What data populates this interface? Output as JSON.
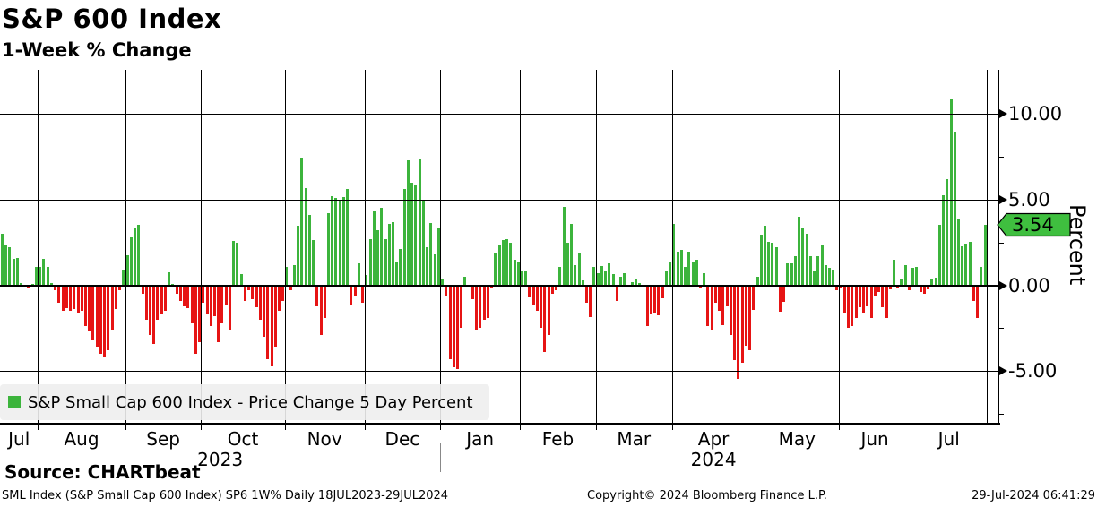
{
  "header": {
    "title": "S&P 600 Index",
    "subtitle": "1-Week % Change"
  },
  "legend": {
    "swatch_icon": "green-square-icon",
    "label": "S&P Small Cap 600 Index - Price Change 5 Day Percent"
  },
  "y_axis": {
    "unit_label": "Percent",
    "major_tick_labels": [
      "10.00",
      "5.00",
      "0.00",
      "-5.00"
    ],
    "major_tick_values": [
      10,
      5,
      0,
      -5
    ],
    "minor_tick_values": [
      7.5,
      2.5,
      -2.5,
      -7.5
    ],
    "last_price_badge": "3.54"
  },
  "footer": {
    "source": "Source: CHARTbeat",
    "description": "SML Index (S&P Small Cap 600 Index) SP6 1W%  Daily 18JUL2023-29JUL2024",
    "copyright": "Copyright© 2024 Bloomberg Finance L.P.",
    "timestamp": "29-Jul-2024 06:41:29"
  },
  "colors": {
    "positive": "#3cb43c",
    "negative": "#e61414",
    "badge": "#3fbf3f",
    "grid": "#000000",
    "year_separator": "#888888"
  },
  "chart_data": {
    "type": "bar",
    "title": "S&P 600 Index",
    "subtitle": "1-Week % Change",
    "series_name": "S&P Small Cap 600 Index - Price Change 5 Day Percent",
    "ylabel": "Percent",
    "ylim": [
      -8.1,
      12.6
    ],
    "yticks": [
      10,
      5,
      0,
      -5
    ],
    "grid": "on",
    "legend_position": "bottom-left",
    "last_value": 3.54,
    "months": [
      {
        "label": "Jul",
        "values": [
          3.0,
          2.4,
          2.2,
          1.55,
          1.6,
          0.12,
          -0.1,
          -0.2,
          0.1,
          1.05
        ]
      },
      {
        "label": "Aug",
        "values": [
          1.05,
          1.55,
          1.05,
          0.15,
          -0.3,
          -1.0,
          -1.5,
          -1.35,
          -1.5,
          -1.4,
          -1.6,
          -1.5,
          -2.4,
          -2.7,
          -3.2,
          -3.6,
          -4.0,
          -4.2,
          -3.8,
          -2.6,
          -1.4,
          -0.3,
          0.9
        ]
      },
      {
        "label": "Sep",
        "values": [
          1.75,
          2.8,
          3.3,
          3.55,
          -0.5,
          -2.0,
          -2.9,
          -3.4,
          -2.0,
          -1.7,
          -1.5,
          0.75,
          0.1,
          -0.5,
          -0.9,
          -1.2,
          -1.35,
          -2.2,
          -4.0,
          -3.3
        ]
      },
      {
        "label": "Oct",
        "values": [
          -1.0,
          -1.7,
          -2.4,
          -1.8,
          -3.3,
          -2.2,
          -1.1,
          -2.6,
          2.6,
          2.5,
          0.65,
          -0.9,
          -0.3,
          -0.8,
          -1.3,
          -2.0,
          -3.0,
          -4.3,
          -4.75,
          -3.6,
          -1.5,
          -0.9
        ]
      },
      {
        "label": "Nov",
        "values": [
          1.1,
          -0.3,
          1.2,
          3.5,
          7.45,
          5.65,
          4.1,
          2.65,
          -1.2,
          -2.9,
          -1.9,
          4.2,
          5.2,
          5.1,
          5.0,
          5.15,
          5.6,
          -1.1,
          -0.6,
          1.3,
          -1.0
        ]
      },
      {
        "label": "Dec",
        "values": [
          0.6,
          2.7,
          4.35,
          3.2,
          4.5,
          2.7,
          3.6,
          3.7,
          1.35,
          2.1,
          5.6,
          7.3,
          6.0,
          5.9,
          7.4,
          5.0,
          2.2,
          3.66,
          1.8,
          3.4
        ]
      },
      {
        "label": "Jan",
        "values": [
          0.4,
          -0.6,
          -4.3,
          -4.8,
          -4.9,
          -2.5,
          0.5,
          -0.1,
          -0.8,
          -2.6,
          -2.5,
          -2.0,
          -1.9,
          -0.2,
          1.9,
          2.4,
          2.65,
          2.7,
          2.5,
          1.5,
          1.4
        ]
      },
      {
        "label": "Feb",
        "values": [
          0.8,
          0.8,
          -0.7,
          -1.1,
          -1.5,
          -2.5,
          -3.9,
          -2.9,
          -0.5,
          -0.3,
          1.1,
          4.6,
          2.5,
          3.6,
          1.2,
          1.9,
          0.3,
          -1.0,
          -1.85,
          1.05
        ]
      },
      {
        "label": "Mar",
        "values": [
          0.7,
          1.15,
          0.8,
          1.3,
          0.65,
          -0.9,
          0.5,
          0.7,
          -0.1,
          0.2,
          0.35,
          0.15,
          -0.1,
          -2.4,
          -1.7,
          -1.6,
          -1.75,
          -0.75,
          0.8,
          1.4
        ]
      },
      {
        "label": "Apr",
        "values": [
          3.6,
          1.95,
          2.05,
          1.1,
          1.95,
          1.4,
          1.5,
          -0.2,
          0.7,
          -2.4,
          -2.6,
          -1.0,
          -1.5,
          -2.3,
          -1.2,
          -2.9,
          -4.35,
          -5.45,
          -4.5,
          -3.5,
          -3.8,
          -1.45
        ]
      },
      {
        "label": "May",
        "values": [
          0.5,
          2.95,
          3.5,
          2.55,
          2.5,
          2.25,
          -1.55,
          -0.95,
          1.3,
          1.3,
          1.7,
          4.0,
          3.3,
          3.0,
          1.7,
          0.8,
          1.7,
          2.4,
          1.2,
          1.0,
          0.9,
          -0.3
        ]
      },
      {
        "label": "Jun",
        "values": [
          -0.2,
          -1.6,
          -2.5,
          -2.4,
          -1.9,
          -1.3,
          -1.6,
          -1.2,
          -1.9,
          -0.6,
          -0.4,
          -1.3,
          -1.9,
          -0.25,
          1.5,
          -0.15,
          0.35,
          1.2,
          -0.3
        ]
      },
      {
        "label": "Jul",
        "values": [
          1.0,
          1.1,
          -0.4,
          -0.5,
          -0.25,
          0.4,
          0.45,
          3.55,
          5.25,
          6.2,
          10.85,
          8.95,
          3.9,
          2.3,
          2.45,
          2.55,
          -0.9,
          -1.9,
          1.05,
          3.54
        ]
      }
    ],
    "year_spans": [
      {
        "text": "2023",
        "from_month": 0,
        "to_month": 5
      },
      {
        "text": "2024",
        "from_month": 6,
        "to_month": 12
      }
    ]
  }
}
